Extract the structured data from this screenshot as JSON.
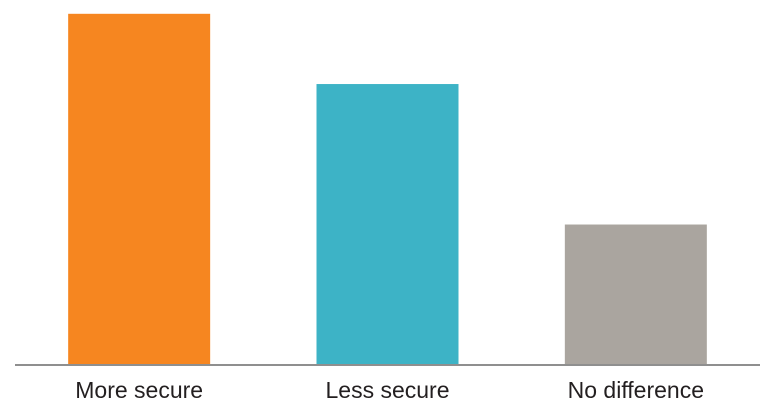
{
  "chart_data": {
    "type": "bar",
    "categories": [
      "More secure",
      "Less secure",
      "No difference"
    ],
    "values": [
      45,
      36,
      18
    ],
    "colors": [
      "#f68620",
      "#3db3c6",
      "#aaa59f"
    ],
    "baseline_color": "#8f8f8f",
    "ylim": [
      0,
      46
    ],
    "grid": false,
    "legend": "none"
  }
}
